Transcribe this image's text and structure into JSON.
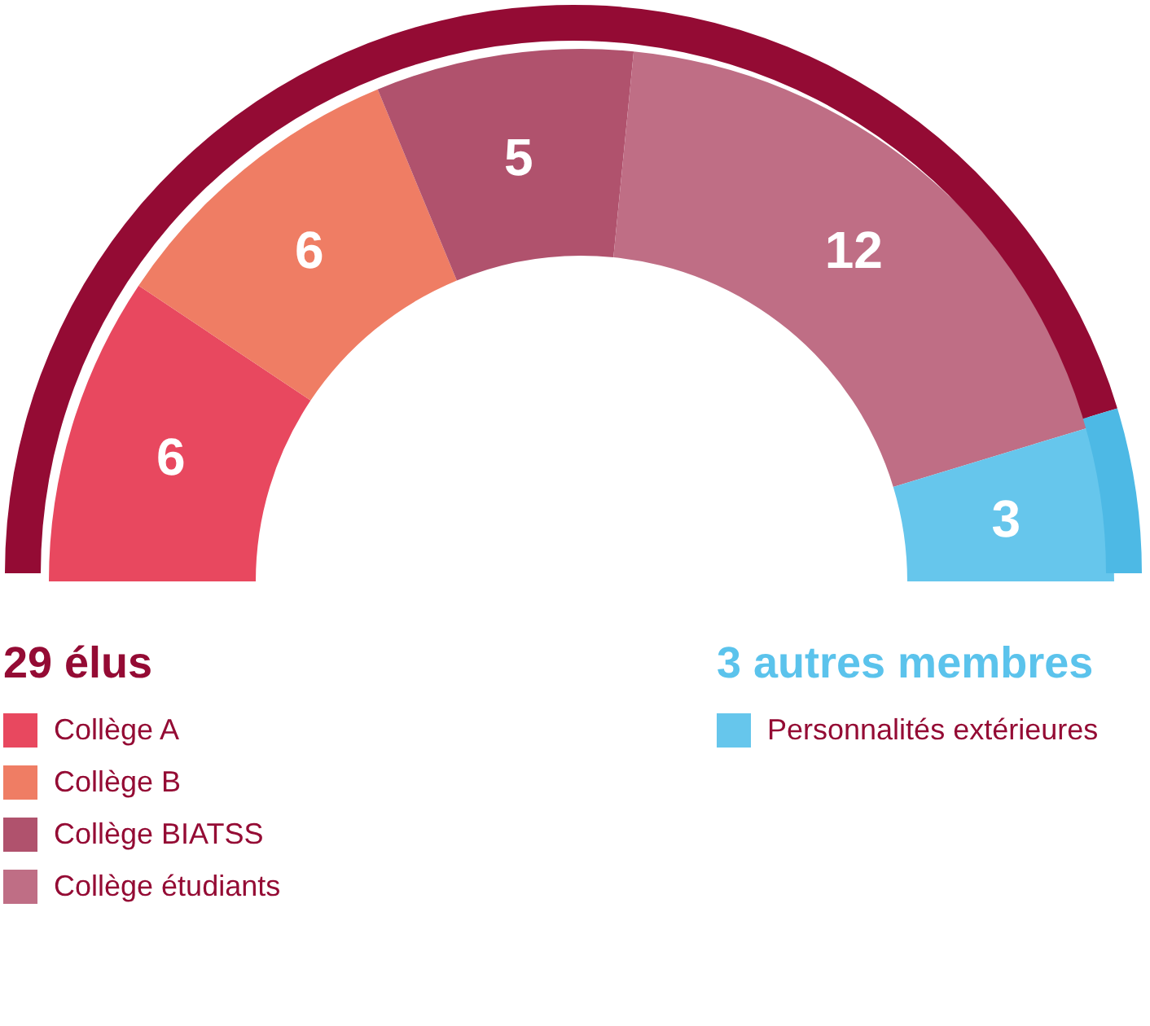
{
  "chart_data": {
    "type": "donut",
    "categories": [
      "Collège A",
      "Collège B",
      "Collège BIATSS",
      "Collège étudiants",
      "Personnalités extérieures"
    ],
    "values": [
      6,
      6,
      5,
      12,
      3
    ],
    "colors": [
      "#e8485f",
      "#ef7d64",
      "#b0526d",
      "#bf6e85",
      "#66c6ec"
    ],
    "data_labels": true,
    "legend": "bottom",
    "annotations": [
      "29 élus",
      "3 autres membres"
    ]
  }
}
